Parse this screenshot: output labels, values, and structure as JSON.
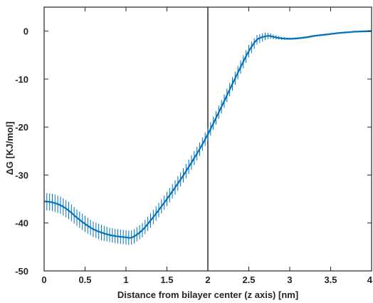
{
  "chart_data": {
    "type": "line",
    "title": "",
    "xlabel": "Distance from bilayer center (z axis) [nm]",
    "ylabel": "ΔG [KJ/mol]",
    "xlim": [
      0,
      4
    ],
    "ylim": [
      -50,
      5
    ],
    "xticks": [
      0,
      0.5,
      1,
      1.5,
      2,
      2.5,
      3,
      3.5,
      4
    ],
    "xtick_labels": [
      "0",
      "0.5",
      "1",
      "1.5",
      "2",
      "2.5",
      "3",
      "3.5",
      "4"
    ],
    "yticks": [
      -50,
      -40,
      -30,
      -20,
      -10,
      0
    ],
    "ytick_labels": [
      "-50",
      "-40",
      "-30",
      "-20",
      "-10",
      "0"
    ],
    "grid": false,
    "legend": "none",
    "vertical_line_x": 2.0,
    "series": [
      {
        "color": "#0072BD",
        "x": [
          0,
          0.1,
          0.2,
          0.3,
          0.4,
          0.5,
          0.6,
          0.7,
          0.8,
          0.9,
          1.0,
          1.05,
          1.1,
          1.2,
          1.3,
          1.4,
          1.5,
          1.6,
          1.7,
          1.8,
          1.9,
          2.0,
          2.1,
          2.2,
          2.3,
          2.4,
          2.5,
          2.6,
          2.7,
          2.75,
          2.8,
          2.9,
          3.0,
          3.1,
          3.2,
          3.3,
          3.4,
          3.5,
          3.6,
          3.7,
          3.8,
          3.9,
          4.0
        ],
        "y": [
          -35.5,
          -35.7,
          -36.3,
          -37.4,
          -38.9,
          -40.2,
          -41.3,
          -42.0,
          -42.5,
          -42.8,
          -43.0,
          -43.1,
          -42.8,
          -41.5,
          -39.5,
          -37.3,
          -35.0,
          -32.6,
          -30.1,
          -27.4,
          -24.6,
          -21.5,
          -18.1,
          -14.6,
          -11.0,
          -7.5,
          -4.2,
          -1.8,
          -1.1,
          -1.0,
          -1.2,
          -1.5,
          -1.6,
          -1.5,
          -1.3,
          -1.0,
          -0.8,
          -0.6,
          -0.4,
          -0.25,
          -0.12,
          -0.05,
          0.0
        ],
        "error": [
          1.8,
          1.8,
          1.8,
          1.8,
          1.7,
          1.7,
          1.6,
          1.6,
          1.5,
          1.5,
          1.5,
          1.5,
          1.5,
          1.5,
          1.5,
          1.5,
          1.5,
          1.5,
          1.5,
          1.5,
          1.4,
          1.4,
          1.4,
          1.4,
          1.4,
          1.4,
          1.3,
          1.0,
          0.8,
          0.6,
          0.5,
          0.3,
          0.2,
          0.2,
          0.2,
          0.2,
          0.2,
          0.2,
          0.2,
          0.2,
          0.2,
          0.2,
          0.2
        ]
      }
    ]
  }
}
